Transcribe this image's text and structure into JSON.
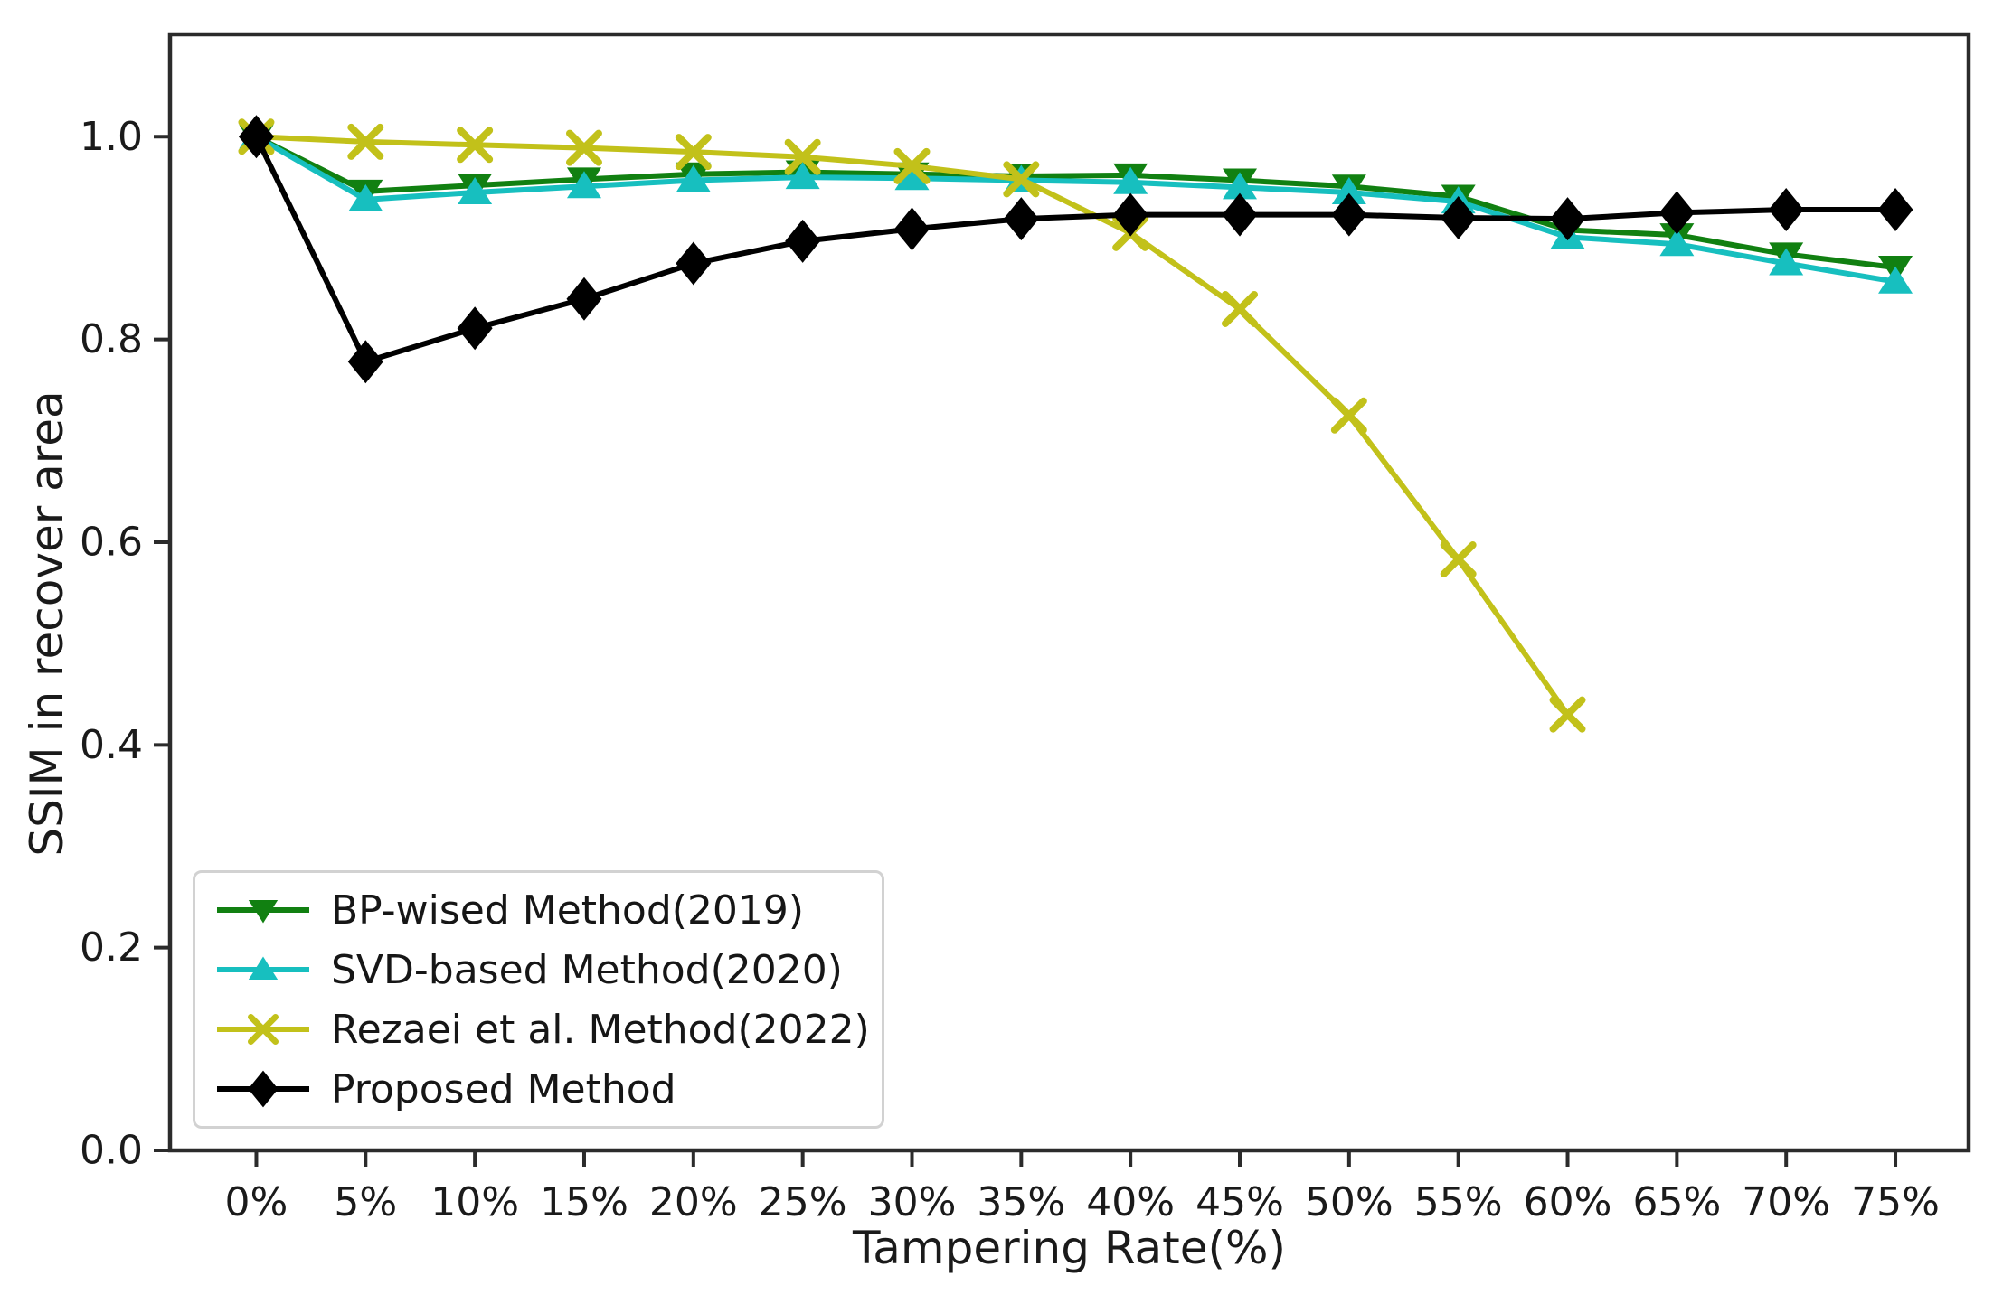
{
  "chart_data": {
    "type": "line",
    "title": "",
    "xlabel": "Tampering Rate(%)",
    "ylabel": "SSIM in recover area",
    "categories": [
      "0%",
      "5%",
      "10%",
      "15%",
      "20%",
      "25%",
      "30%",
      "35%",
      "40%",
      "45%",
      "50%",
      "55%",
      "60%",
      "65%",
      "70%",
      "75%"
    ],
    "x_percent": [
      0,
      5,
      10,
      15,
      20,
      25,
      30,
      35,
      40,
      45,
      50,
      55,
      60,
      65,
      70,
      75
    ],
    "yticks": [
      "0.0",
      "0.2",
      "0.4",
      "0.6",
      "0.8",
      "1.0"
    ],
    "ytick_values": [
      0.0,
      0.2,
      0.4,
      0.6,
      0.8,
      1.0
    ],
    "ylim": [
      0,
      1.101
    ],
    "xlim_category_units": [
      -0.79,
      15.67
    ],
    "grid": false,
    "legend_position": "lower left",
    "series": [
      {
        "name": "BP-wised Method(2019)",
        "slug": "bp-wised-method",
        "color": "#118011",
        "marker": "triangle-down",
        "values": [
          1.0,
          0.946,
          0.952,
          0.958,
          0.963,
          0.965,
          0.963,
          0.961,
          0.962,
          0.957,
          0.951,
          0.941,
          0.908,
          0.903,
          0.884,
          0.871
        ]
      },
      {
        "name": "SVD-based Method(2020)",
        "slug": "svd-based-method",
        "color": "#17bfbf",
        "marker": "triangle-up",
        "values": [
          1.0,
          0.938,
          0.945,
          0.951,
          0.957,
          0.96,
          0.959,
          0.957,
          0.955,
          0.95,
          0.945,
          0.936,
          0.901,
          0.894,
          0.875,
          0.857
        ]
      },
      {
        "name": "Rezaei et al. Method(2022)",
        "slug": "rezaei-method",
        "color": "#c2c11a",
        "marker": "x",
        "values": [
          1.0,
          0.995,
          0.992,
          0.989,
          0.985,
          0.98,
          0.971,
          0.958,
          0.905,
          0.83,
          0.725,
          0.583,
          0.43
        ]
      },
      {
        "name": "Proposed Method",
        "slug": "proposed-method",
        "color": "#000000",
        "marker": "diamond",
        "values": [
          1.0,
          0.778,
          0.811,
          0.84,
          0.875,
          0.897,
          0.909,
          0.919,
          0.923,
          0.923,
          0.923,
          0.92,
          0.919,
          0.925,
          0.928,
          0.928
        ]
      }
    ],
    "axis_color": "#2b2b2b",
    "text_color": "#1a1a1a"
  }
}
